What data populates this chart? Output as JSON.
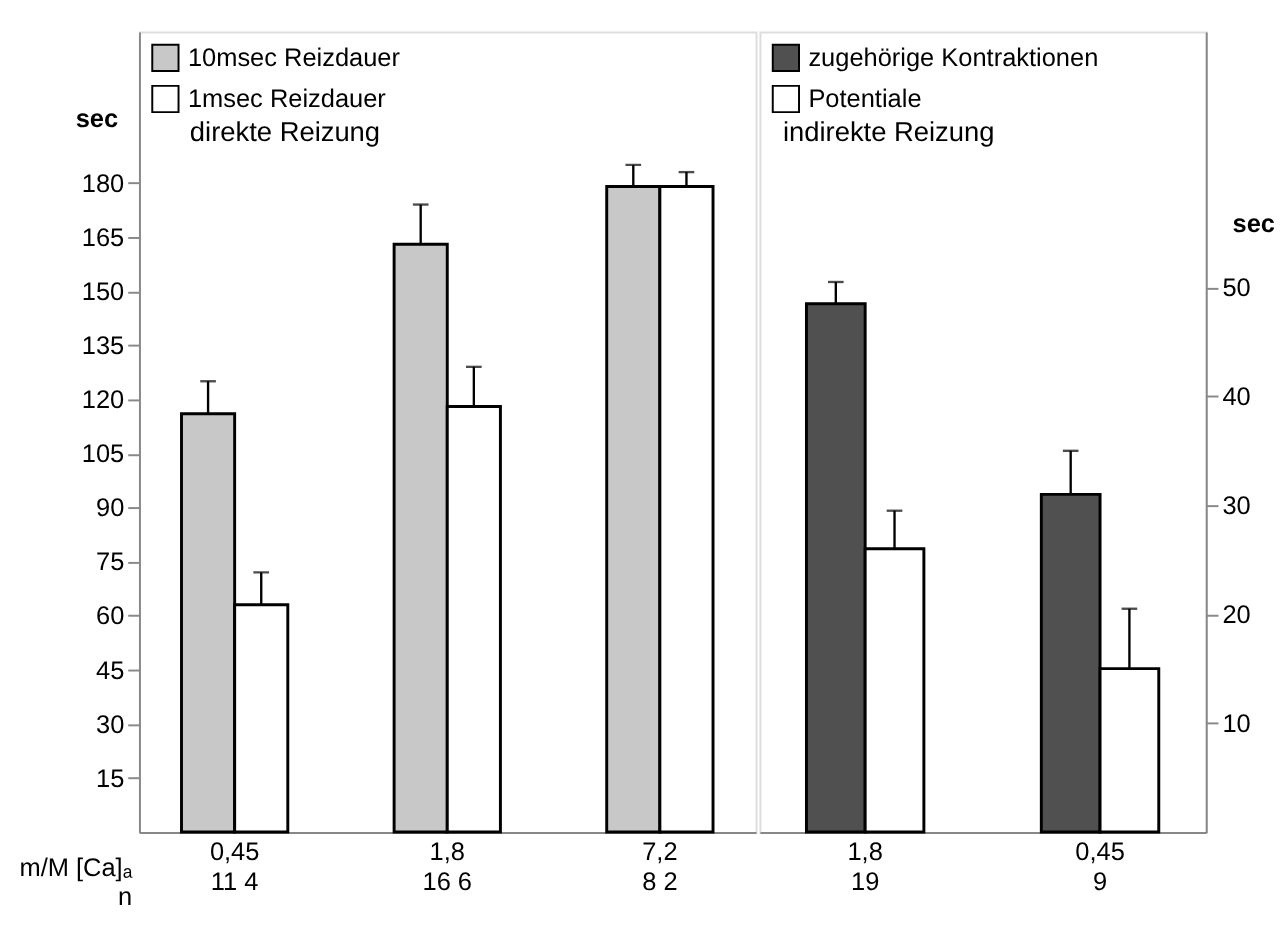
{
  "chart_data": [
    {
      "type": "bar",
      "categories": [
        "0,45",
        "1,8",
        "7,2"
      ],
      "xlabel": "m/M [Ca]ₐ",
      "ylabel": "sec",
      "series": [
        {
          "name": "10msec Reizdauer",
          "color": "#c8c8c8",
          "values": [
            116,
            163,
            179
          ],
          "errors": [
            9,
            11,
            6
          ]
        },
        {
          "name": "1msec Reizdauer",
          "color": "#ffffff",
          "values": [
            63,
            118,
            179
          ],
          "errors": [
            9,
            11,
            4
          ]
        }
      ],
      "ylim": [
        0,
        222
      ],
      "yticks": [
        15,
        30,
        45,
        60,
        75,
        90,
        105,
        120,
        135,
        150,
        165,
        180
      ],
      "annotations": [
        "direkte Reizung",
        "n",
        "11  4",
        "16  6",
        "8  2"
      ],
      "legend": "top left",
      "grid": false
    },
    {
      "type": "bar",
      "categories": [
        "1,8",
        "0,45"
      ],
      "y2label": "sec",
      "series": [
        {
          "name": "zugehörige Kontraktionen",
          "color": "#505050",
          "values": [
            48.5,
            31
          ],
          "errors": [
            2,
            4
          ],
          "axis": "y2"
        },
        {
          "name": "Potentiale",
          "color": "#ffffff",
          "values": [
            26,
            15
          ],
          "errors": [
            3.5,
            5.5
          ],
          "axis": "y2"
        }
      ],
      "y2lim": [
        0,
        73.5
      ],
      "y2ticks": [
        10,
        20,
        30,
        40,
        50
      ],
      "annotations": [
        "indirekte Reizung",
        "19",
        "9"
      ],
      "legend": "top left",
      "grid": false
    }
  ]
}
